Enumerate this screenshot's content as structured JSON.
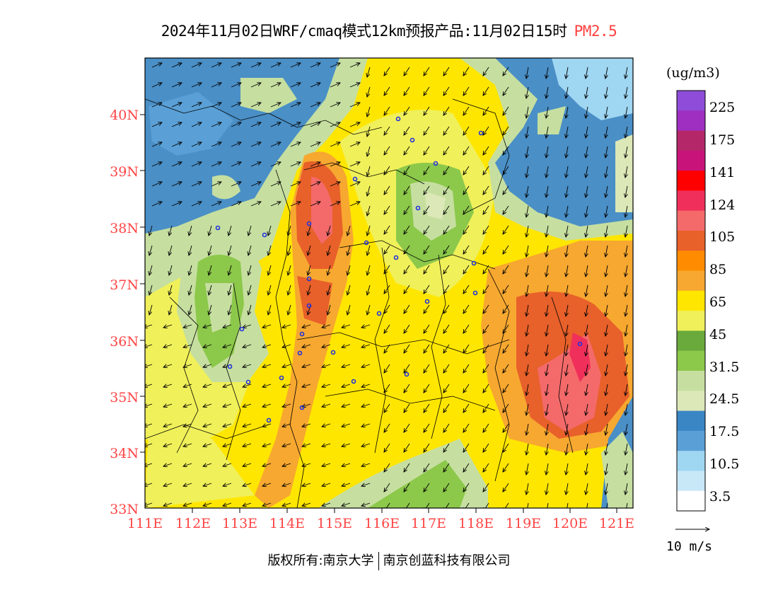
{
  "title": {
    "main": "2024年11月02日WRF/cmaq模式12km预报产品:11月02日15时",
    "variable": "PM2.5"
  },
  "map": {
    "lat_labels": [
      "40N",
      "39N",
      "38N",
      "37N",
      "36N",
      "35N",
      "34N",
      "33N"
    ],
    "lon_labels": [
      "111E",
      "112E",
      "113E",
      "114E",
      "115E",
      "116E",
      "117E",
      "118E",
      "119E",
      "120E",
      "121E"
    ],
    "colors": {
      "label_red": "#ff4444",
      "pm_level_3_5": "#d8eefa",
      "pm_level_10_5": "#9fd6f2",
      "pm_level_17_5": "#4a8fc6",
      "pm_level_24_5": "#c6dfa0",
      "pm_level_31_5": "#6aaa3c",
      "pm_level_45": "#f0f05a",
      "pm_level_65": "#ffe600",
      "pm_level_85": "#f7a830",
      "pm_level_105": "#e8602a",
      "pm_level_124": "#f46a6a",
      "pm_level_141": "#ff0000"
    }
  },
  "colorbar": {
    "unit": "(ug/m3)",
    "levels": [
      "225",
      "175",
      "141",
      "124",
      "105",
      "85",
      "65",
      "45",
      "31.5",
      "24.5",
      "17.5",
      "10.5",
      "3.5"
    ],
    "colors": [
      "#8e4cd8",
      "#9e2fc0",
      "#b4286a",
      "#c8147a",
      "#ff0000",
      "#f0305a",
      "#f46a6a",
      "#e8602a",
      "#ff8c00",
      "#f7a830",
      "#ffe600",
      "#f0f05a",
      "#6aaa3c",
      "#8cc84a",
      "#c6dfa0",
      "#dce8b8",
      "#3a86c4",
      "#5aa0d6",
      "#9fd6f2",
      "#c8e8f8",
      "#ffffff"
    ]
  },
  "wind_reference": {
    "label": "10 m/s"
  },
  "footer": {
    "left": "版权所有:南京大学",
    "right": "南京创蓝科技有限公司"
  }
}
